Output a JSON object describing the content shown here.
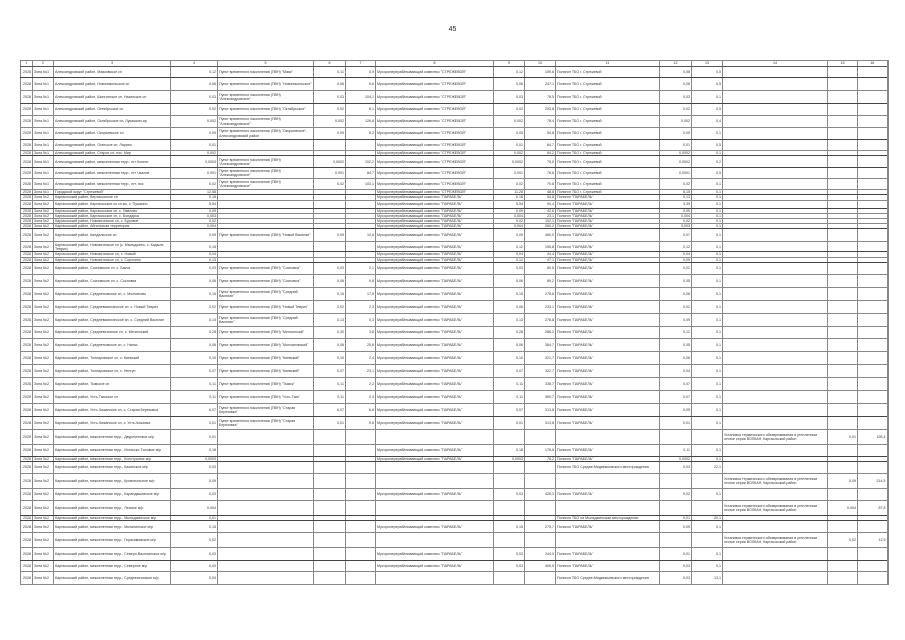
{
  "page_number": "45",
  "table": {
    "headers": [
      "1",
      "2",
      "3",
      "4",
      "5",
      "6",
      "7",
      "8",
      "9",
      "10",
      "11",
      "12",
      "13",
      "14",
      "15",
      "16"
    ],
    "rows": [
      [
        "2028",
        "Зона №1",
        "Александровский район, Маяковское сп",
        "0,12",
        "Пункт временного накопления (ПВН) \"Маяк\"",
        "0,11",
        "0,9",
        "Мусороперерабатывающий комплекс \"СТРЕЖЕВОЙ\"",
        "0,12",
        "159,6",
        "Полигон ТБО г. Стрежевой",
        "0,08",
        "0,5",
        "",
        "",
        ""
      ],
      [
        "2028",
        "Зона №1",
        "Александровский район, Новоникольское сп",
        "0,06",
        "Пункт временного накопления (ПВН) \"Новоникольское\"",
        "0,06",
        "0,6",
        "Мусороперерабатывающий комплекс \"СТРЕЖЕВОЙ\"",
        "0,06",
        "247,1",
        "Полигон ТБО г. Стрежевой",
        "0,06",
        "0,5",
        "",
        "",
        ""
      ],
      [
        "2028",
        "Зона №1",
        "Александровский район, Шингинское сп, Назинское сп",
        "0,03",
        "Пункт временного накопления (ПВН) \"Александровское\"",
        "0,03",
        "104,1",
        "Мусороперерабатывающий комплекс \"СТРЕЖЕВОЙ\"",
        "0,03",
        "78,5",
        "Полигон ТБО г. Стрежевой",
        "0,03",
        "0,1",
        "",
        "",
        ""
      ],
      [
        "2028",
        "Зона №1",
        "Александровский район, Октябрьское сп",
        "0,02",
        "Пункт временного накопления (ПВН) \"Октябрьское\"",
        "0,02",
        "8,1",
        "Мусороперерабатывающий комплекс \"СТРЕЖЕВОЙ\"",
        "0,02",
        "253,8",
        "Полигон ТБО г. Стрежевой",
        "0,02",
        "0,5",
        "",
        "",
        ""
      ],
      [
        "2028",
        "Зона №1",
        "Александровский район, Октябрьское сп, Лукашкин-яр",
        "0,002",
        "Пункт временного накопления (ПВН) \"Александровское\"",
        "0,002",
        "126,8",
        "Мусороперерабатывающий комплекс \"СТРЕЖЕВОЙ\"",
        "0,002",
        "78,4",
        "Полигон ТБО г. Стрежевой",
        "0,002",
        "0,4",
        "",
        "",
        ""
      ],
      [
        "2028",
        "Зона №1",
        "Александровский район, Окорьевское сп",
        "0,05",
        "Пункт временного накопления (ПВН) \"Окорьевское\", Александровский район",
        "0,05",
        "8,2",
        "Мусороперерабатывающий комплекс \"СТРЕЖЕВОЙ\"",
        "0,05",
        "54,8",
        "Полигон ТБО г. Стрежевой",
        "0,05",
        "0,1",
        "",
        "",
        ""
      ],
      [
        "2028",
        "Зона №1",
        "Александровский район, Оганское сп, Ларино",
        "0,01",
        "",
        "",
        "",
        "Мусороперерабатывающий комплекс \"СТРЕЖЕВОЙ\"",
        "0,01",
        "64,7",
        "Полигон ТБО г. Стрежевой",
        "0,01",
        "0,5",
        "",
        "",
        ""
      ],
      [
        "2028",
        "Зона №1",
        "Александровский район, Старое сп, пос. Мир",
        "0,002",
        "",
        "",
        "",
        "Мусороперерабатывающий комплекс \"СТРЕЖЕВОЙ\"",
        "0,002",
        "64,2",
        "Полигон ТБО г. Стрежевой",
        "0,0002",
        "0,1",
        "",
        "",
        ""
      ],
      [
        "2028",
        "Зона №1",
        "Александровский район, межселенная терр., пгт Колнег",
        "0,0003",
        "Пункт временного накопления (ПВН) \"Александровское\"",
        "0,0002",
        "102,2",
        "Мусороперерабатывающий комплекс \"СТРЕЖЕВОЙ\"",
        "0,0002",
        "75,5",
        "Полигон ТБО г. Стрежевой",
        "0,0002",
        "0,2",
        "",
        "",
        ""
      ],
      [
        "2028",
        "Зона №1",
        "Александровский район, межселенная терр., пгт Чкалов",
        "0,001",
        "Пункт временного накопления (ПВН) \"Александровское\"",
        "0,001",
        "84,7",
        "Мусороперерабатывающий комплекс \"СТРЕЖЕВОЙ\"",
        "0,001",
        "76,6",
        "Полигон ТБО г. Стрежевой",
        "0,0001",
        "0,5",
        "",
        "",
        ""
      ],
      [
        "2028",
        "Зона №1",
        "Александровский район, межселенная терр., пгт. пос",
        "0,02",
        "Пункт временного накопления (ПВН) \"Александровское\"",
        "0,02",
        "103,1",
        "Мусороперерабатывающий комплекс \"СТРЕЖЕВОЙ\"",
        "0,02",
        "70,8",
        "Полигон ТБО г. Стрежевой",
        "0,02",
        "0,1",
        "",
        "",
        ""
      ],
      [
        "2028",
        "Зона №1",
        "Городской округ \"Стрежевой\"",
        "12,58",
        "",
        "",
        "",
        "Мусороперерабатывающий комплекс \"СТРЕЖЕВОЙ\"",
        "11,28",
        "48,8",
        "Полигон ТБО г. Стрежевой",
        "8,15",
        "0,1",
        "",
        "",
        ""
      ],
      [
        "2028",
        "Зона №2",
        "Каргасокский район, Вертикосское сп",
        "0,18",
        "",
        "",
        "",
        "Мусороперерабатывающий комплекс \"ПАРАБЕЛЬ\"",
        "0,18",
        "54,8",
        "Полигон \"ПАРАБЕЛЬ\"",
        "0,13",
        "0,1",
        "",
        "",
        ""
      ],
      [
        "2028",
        "Зона №2",
        "Каргасокский район, Каргасокское сп сп-во, с. Пушкино",
        "5,54",
        "",
        "",
        "",
        "Мусороперерабатывающий комплекс \"ПАРАБЕЛЬ\"",
        "5,54",
        "94,4",
        "Полигон \"ПАРАБЕЛЬ\"",
        "3,39",
        "0,1",
        "",
        "",
        ""
      ],
      [
        "2028",
        "Зона №2",
        "Каргасокский район, Каргасокское сп, с. Павлово",
        "0,09",
        "",
        "",
        "",
        "Мусороперерабатывающий комплекс \"ПАРАБЕЛЬ\"",
        "0,09",
        "42,6",
        "Полигон \"ПАРАБЕЛЬ\"",
        "0,05",
        "0,1",
        "",
        "",
        ""
      ],
      [
        "2028",
        "Зона №2",
        "Каргасокский район, Каргасокское сп, с. Бондарка",
        "0,003",
        "",
        "",
        "",
        "Мусороперерабатывающий комплекс \"ПАРАБЕЛЬ\"",
        "0,004",
        "23,1",
        "Полигон \"ПАРАБЕЛЬ\"",
        "0,004",
        "0,1",
        "",
        "",
        ""
      ],
      [
        "2028",
        "Зона №2",
        "Каргасокский район, Новоюгинское сп, с. Буровое",
        "0,02",
        "",
        "",
        "",
        "Мусороперерабатывающий комплекс \"ПАРАБЕЛЬ\"",
        "0,02",
        "102,1",
        "Полигон \"ПАРАБЕЛЬ\"",
        "0,02",
        "0,1",
        "",
        "",
        ""
      ],
      [
        "2028",
        "Зона №2",
        "Каргасокский район, Айгальская территория",
        "0,004",
        "",
        "",
        "",
        "Мусороперерабатывающий комплекс \"ПАРАБЕЛЬ\"",
        "0,004",
        "260,2",
        "Полигон \"ПАРАБЕЛЬ\"",
        "0,003",
        "0,1",
        "",
        "",
        ""
      ],
      [
        "2028",
        "Зона №2",
        "Каргасокский район, Киндальское сп",
        "0,09",
        "Пункт временного накопления (ПВН) \"Новый Васюган\"",
        "0,09",
        "10,6",
        "Мусороперерабатывающий комплекс \"ПАРАБЕЛЬ\"",
        "0,09",
        "460,0",
        "Полигон \"ПАРАБЕЛЬ\"",
        "0,07",
        "0,1",
        "",
        "",
        ""
      ],
      [
        "2028",
        "Зона №2",
        "Каргасокский район, Новоюгинское сп (с. Мыльджино, с. Кадыла Тевриз)",
        "0,15",
        "",
        "",
        "",
        "Мусороперерабатывающий комплекс \"ПАРАБЕЛЬ\"",
        "0,12",
        "195,8",
        "Полигон \"ПАРАБЕЛЬ\"",
        "0,12",
        "0,1",
        "",
        "",
        ""
      ],
      [
        "2028",
        "Зона №2",
        "Каргасокский район, Новоюгинское сп, с. Новый",
        "0,04",
        "",
        "",
        "",
        "Мусороперерабатывающий комплекс \"ПАРАБЕЛЬ\"",
        "0,04",
        "44,4",
        "Полигон \"ПАРАБЕЛЬ\"",
        "0,04",
        "0,1",
        "",
        "",
        ""
      ],
      [
        "2028",
        "Зона №2",
        "Каргасокский район, Новоюгинское сп, с. Сорокино",
        "0,13",
        "",
        "",
        "",
        "Мусороперерабатывающий комплекс \"ПАРАБЕЛЬ\"",
        "0,12",
        "47,1",
        "Полигон \"ПАРАБЕЛЬ\"",
        "0,09",
        "0,1",
        "",
        "",
        ""
      ],
      [
        "2028",
        "Зона №2",
        "Каргасокский район, Сосновское сп, с. Бакча",
        "0,03",
        "Пункт временного накопления (ПВН) \"Сосновка\"",
        "0,03",
        "2,1",
        "Мусороперерабатывающий комплекс \"ПАРАБЕЛЬ\"",
        "0,03",
        "80,6",
        "Полигон \"ПАРАБЕЛЬ\"",
        "0,02",
        "0,1",
        "",
        "",
        ""
      ],
      [
        "2028",
        "Зона №2",
        "Каргасокский район, Сосновское сп, с. Сосновка",
        "0,06",
        "Пункт временного накопления (ПВН) \"Сосновка\"",
        "0,06",
        "0,8",
        "Мусороперерабатывающий комплекс \"ПАРАБЕЛЬ\"",
        "0,06",
        "89,2",
        "Полигон \"ПАРАБЕЛЬ\"",
        "0,05",
        "0,1",
        "",
        "",
        ""
      ],
      [
        "2028",
        "Зона №2",
        "Каргасокский район, Среднетымское сп, с. Молчаново",
        "0,15",
        "Пункт временного накопления (ПВН) \"Средний Васюган\"",
        "0,15",
        "17,9",
        "Мусороперерабатывающий комплекс \"ПАРАБЕЛЬ\"",
        "0,15",
        "278,6",
        "Полигон \"ПАРАБЕЛЬ\"",
        "0,08",
        "0,1",
        "",
        "",
        ""
      ],
      [
        "2028",
        "Зона №2",
        "Каргасокский район, Средневасюганское сп, с. Новый Тевриз",
        "0,02",
        "Пункт временного накопления (ПВН) \"Новый Тевриз\"",
        "0,02",
        "2,3",
        "Мусороперерабатывающий комплекс \"ПАРАБЕЛЬ\"",
        "0,06",
        "233,1",
        "Полигон \"ПАРАБЕЛЬ\"",
        "0,02",
        "0,1",
        "",
        "",
        ""
      ],
      [
        "2028",
        "Зона №2",
        "Каргасокский район, Средневасюганское сп, с. Средний Васюган",
        "0,14",
        "Пункт временного накопления (ПВН) \"Средний Васюган\"",
        "0,13",
        "0,3",
        "Мусороперерабатывающий комплекс \"ПАРАБЕЛЬ\"",
        "0,13",
        "276,8",
        "Полигон \"ПАРАБЕЛЬ\"",
        "0,09",
        "0,1",
        "",
        "",
        ""
      ],
      [
        "2028",
        "Зона №2",
        "Каргасокский район, Среднеюганское сп, с. Мегионский",
        "0,28",
        "Пункт временного накопления (ПВН) \"Мегионский\"",
        "0,30",
        "3,8",
        "Мусороперерабатывающий комплекс \"ПАРАБЕЛЬ\"",
        "0,28",
        "286,2",
        "Полигон \"ПАРАБЕЛЬ\"",
        "0,12",
        "0,1",
        "",
        "",
        ""
      ],
      [
        "2028",
        "Зона №2",
        "Каргасокский район, Среднетымское сп, с. Напас",
        "0,06",
        "Пункт временного накопления (ПВН) \"Молчановский\"",
        "0,06",
        "25,6",
        "Мусороперерабатывающий комплекс \"ПАРАБЕЛЬ\"",
        "0,06",
        "384,7",
        "Полигон \"ПАРАБЕЛЬ\"",
        "0,05",
        "0,1",
        "",
        "",
        ""
      ],
      [
        "2028",
        "Зона №2",
        "Каргасокский район, Толпаровское сп, с. Киевский",
        "0,10",
        "Пункт временного накопления (ПВН) \"Киевский\"",
        "0,10",
        "2,4",
        "Мусороперерабатывающий комплекс \"ПАРАБЕЛЬ\"",
        "0,10",
        "321,7",
        "Полигон \"ПАРАБЕЛЬ\"",
        "0,06",
        "0,1",
        "",
        "",
        ""
      ],
      [
        "2028",
        "Зона №2",
        "Каргасокский район, Толпаровское сп, с. Нелгун",
        "0,07",
        "Пункт временного накопления (ПВН) \"Киевский\"",
        "0,07",
        "23,1",
        "Мусороперерабатывающий комплекс \"ПАРАБЕЛЬ\"",
        "0,07",
        "322,7",
        "Полигон \"ПАРАБЕЛЬ\"",
        "0,04",
        "0,1",
        "",
        "",
        ""
      ],
      [
        "2028",
        "Зона №2",
        "Каргасокский район, Тымское сп",
        "0,11",
        "Пункт временного накопления (ПВН) \"Тымск\"",
        "0,11",
        "2,2",
        "Мусороперерабатывающий комплекс \"ПАРАБЕЛЬ\"",
        "0,11",
        "338,7",
        "Полигон \"ПАРАБЕЛЬ\"",
        "0,07",
        "0,1",
        "",
        "",
        ""
      ],
      [
        "2028",
        "Зона №2",
        "Каргасокский район, Усть-Тымское сп",
        "0,11",
        "Пункт временного накопления (ПВН) \"Усть-Тым\"",
        "0,11",
        "0,4",
        "Мусороперерабатывающий комплекс \"ПАРАБЕЛЬ\"",
        "0,11",
        "360,7",
        "Полигон \"ПАРАБЕЛЬ\"",
        "0,07",
        "0,1",
        "",
        "",
        ""
      ],
      [
        "2028",
        "Зона №2",
        "Каргасокский район, Усть-Чижапское сп, с. Старая Березовка",
        "0,07",
        "Пункт временного накопления (ПВН) \"Старая Березовка\"",
        "0,07",
        "6,6",
        "Мусороперерабатывающий комплекс \"ПАРАБЕЛЬ\"",
        "0,07",
        "313,8",
        "Полигон \"ПАРАБЕЛЬ\"",
        "0,05",
        "0,1",
        "",
        "",
        ""
      ],
      [
        "2028",
        "Зона №2",
        "Каргасокский район, Усть-Чижапское сп, с. Усть-Чижапка",
        "0,01",
        "Пункт временного накопления (ПВН) \"Старая Березовка\"",
        "0,01",
        "9,6",
        "Мусороперерабатывающий комплекс \"ПАРАБЕЛЬ\"",
        "0,01",
        "313,8",
        "Полигон \"ПАРАБЕЛЬ\"",
        "0,01",
        "0,1",
        "",
        "",
        ""
      ],
      [
        "2028",
        "Зона №2",
        "Каргасокский район, межселенная терр., Двуреченское м/р",
        "0,01",
        "",
        "",
        "",
        "",
        "",
        "",
        "",
        "",
        "",
        "Установка термического обезвреживания в утепленном отсеке серии ВОЛКАН, Каргасокский район",
        "0,01",
        "195,4"
      ],
      [
        "2028",
        "Зона №2",
        "Каргасокский район, межселенная терр., Игольско-Таловое м/р",
        "0,18",
        "",
        "",
        "",
        "Мусороперерабатывающий комплекс \"ПАРАБЕЛЬ\"",
        "0,18",
        "178,6",
        "Полигон \"ПАРАБЕЛЬ\"",
        "0,11",
        "0,1",
        "",
        "",
        ""
      ],
      [
        "2028",
        "Зона №2",
        "Каргасокский район, межселенная терр., Колотушное м/р",
        "0,0003",
        "",
        "",
        "",
        "Мусороперерабатывающий комплекс \"ПАРАБЕЛЬ\"",
        "0,0003",
        "78,2",
        "Полигон \"ПАРАБЕЛЬ\"",
        "0,0002",
        "0,1",
        "",
        "",
        ""
      ],
      [
        "2028",
        "Зона №2",
        "Каргасокский район, межселенная терр., Казанское м/р",
        "0,03",
        "",
        "",
        "",
        "",
        "",
        "",
        "Полигон ТБО Средне-Медвежьевского месторождения",
        "0,03",
        "22,1",
        "",
        "",
        ""
      ],
      [
        "2028",
        "Зона №2",
        "Каргасокский район, межселенная терр., Кровопольное м/р",
        "0,09",
        "",
        "",
        "",
        "",
        "",
        "",
        "",
        "",
        "",
        "Установка термического обезвреживания в утепленном отсеке серии ВОЛКАН, Каргасокский район",
        "0,09",
        "214,5"
      ],
      [
        "2028",
        "Зона №2",
        "Каргасокский район, межселенная терр., Карандашевское м/р",
        "0,03",
        "",
        "",
        "",
        "Мусороперерабатывающий комплекс \"ПАРАБЕЛЬ\"",
        "0,03",
        "426,3",
        "Полигон \"ПАРАБЕЛЬ\"",
        "0,02",
        "0,1",
        "",
        "",
        ""
      ],
      [
        "2028",
        "Зона №2",
        "Каргасокский район, межселенная терр., Лесмое м/р",
        "0,004",
        "",
        "",
        "",
        "",
        "",
        "",
        "",
        "",
        "",
        "Установка термического обезвреживания в утепленном отсеке серии ВОЛКАН, Каргасокский район",
        "0,004",
        "87,8"
      ],
      [
        "2028",
        "Зона №2",
        "Каргасокский район, межселенная терр., Мыльджинское м/р",
        "0,01",
        "",
        "",
        "",
        "",
        "",
        "",
        "Полигон ТБО на Мыльджинском месторождении",
        "0,01",
        "20,1",
        "",
        "",
        ""
      ],
      [
        "2028",
        "Зона №2",
        "Каргасокский район, межселенная терр., Мыгалинское м/р",
        "0,15",
        "",
        "",
        "",
        "Мусороперерабатывающий комплекс \"ПАРАБЕЛЬ\"",
        "0,15",
        "275,7",
        "Полигон \"ПАРАБЕЛЬ\"",
        "0,09",
        "0,1",
        "",
        "",
        ""
      ],
      [
        "2028",
        "Зона №2",
        "Каргасокский район, межселенная терр., Герасимовское м/р",
        "0,02",
        "",
        "",
        "",
        "",
        "",
        "",
        "",
        "",
        "",
        "Установка термического обезвреживания в утепленном отсеке серии ВОЛКАН, Каргасокский район",
        "0,02",
        "12,5"
      ],
      [
        "2028",
        "Зона №2",
        "Каргасокский район, межселенная терр., Северо-Васюганское м/р",
        "0,03",
        "",
        "",
        "",
        "Мусороперерабатывающий комплекс \"ПАРАБЕЛЬ\"",
        "0,03",
        "244,0",
        "Полигон \"ПАРАБЕЛЬ\"",
        "0,01",
        "0,1",
        "",
        "",
        ""
      ],
      [
        "2028",
        "Зона №2",
        "Каргасокский район, межселенная терр., Северное м/р",
        "0,03",
        "",
        "",
        "",
        "Мусороперерабатывающий комплекс \"ПАРАБЕЛЬ\"",
        "0,03",
        "409,9",
        "Полигон \"ПАРАБЕЛЬ\"",
        "0,03",
        "0,1",
        "",
        "",
        ""
      ],
      [
        "2028",
        "Зона №2",
        "Каргасокский район, межселенная терр., Среднеюганское м/р",
        "0,04",
        "",
        "",
        "",
        "",
        "",
        "",
        "Полигон ТБО Средне-Медвежьевского месторождения",
        "0,03",
        "13,1",
        "",
        "",
        ""
      ]
    ]
  }
}
